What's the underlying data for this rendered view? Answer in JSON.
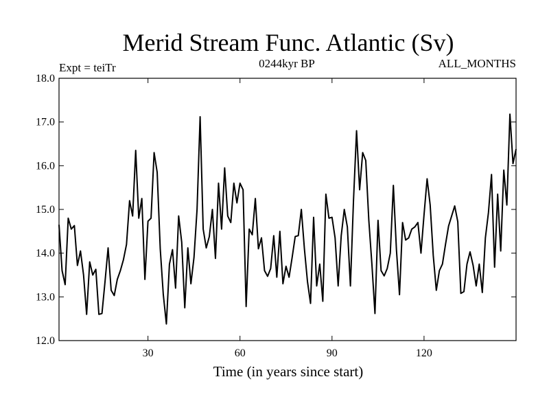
{
  "chart_data": {
    "type": "line",
    "title": "Merid Stream Func. Atlantic (Sv)",
    "subtitle_left": "Expt = teiTr",
    "subtitle_center": "0244kyr BP",
    "subtitle_right": "ALL_MONTHS",
    "xlabel": "Time (in years since start)",
    "ylabel": "",
    "xlim": [
      1,
      150
    ],
    "ylim": [
      12.0,
      18.0
    ],
    "xticks": [
      30,
      60,
      90,
      120
    ],
    "xtick_labels": [
      "30",
      "60",
      "90",
      "120"
    ],
    "yticks": [
      12.0,
      13.0,
      14.0,
      15.0,
      16.0,
      17.0,
      18.0
    ],
    "ytick_labels": [
      "12.0",
      "13.0",
      "14.0",
      "15.0",
      "16.0",
      "17.0",
      "18.0"
    ],
    "series": [
      {
        "name": "Merid Stream Func. Atlantic",
        "x": [
          1,
          2,
          3,
          4,
          5,
          6,
          7,
          8,
          9,
          10,
          11,
          12,
          13,
          14,
          15,
          16,
          17,
          18,
          19,
          20,
          21,
          22,
          23,
          24,
          25,
          26,
          27,
          28,
          29,
          30,
          31,
          32,
          33,
          34,
          35,
          36,
          37,
          38,
          39,
          40,
          41,
          42,
          43,
          44,
          45,
          46,
          47,
          48,
          49,
          50,
          51,
          52,
          53,
          54,
          55,
          56,
          57,
          58,
          59,
          60,
          61,
          62,
          63,
          64,
          65,
          66,
          67,
          68,
          69,
          70,
          71,
          72,
          73,
          74,
          75,
          76,
          77,
          78,
          79,
          80,
          81,
          82,
          83,
          84,
          85,
          86,
          87,
          88,
          89,
          90,
          91,
          92,
          93,
          94,
          95,
          96,
          97,
          98,
          99,
          100,
          101,
          102,
          103,
          104,
          105,
          106,
          107,
          108,
          109,
          110,
          111,
          112,
          113,
          114,
          115,
          116,
          117,
          118,
          119,
          120,
          121,
          122,
          123,
          124,
          125,
          126,
          127,
          128,
          129,
          130,
          131,
          132,
          133,
          134,
          135,
          136,
          137,
          138,
          139,
          140,
          141,
          142,
          143,
          144,
          145,
          146,
          147,
          148,
          149,
          150
        ],
        "values": [
          14.65,
          13.6,
          13.28,
          14.8,
          14.55,
          14.63,
          13.72,
          14.05,
          13.5,
          12.6,
          13.8,
          13.5,
          13.63,
          12.6,
          12.62,
          13.35,
          14.12,
          13.15,
          13.03,
          13.4,
          13.6,
          13.85,
          14.2,
          15.2,
          14.85,
          16.35,
          14.8,
          15.25,
          13.4,
          14.73,
          14.8,
          16.3,
          15.85,
          14.1,
          13.05,
          12.38,
          13.75,
          14.08,
          13.2,
          14.85,
          14.25,
          12.75,
          14.12,
          13.3,
          13.9,
          15.0,
          17.12,
          14.55,
          14.12,
          14.38,
          15.0,
          13.88,
          15.6,
          14.55,
          15.95,
          14.85,
          14.7,
          15.6,
          15.15,
          15.6,
          15.45,
          12.78,
          14.55,
          14.42,
          15.25,
          14.1,
          14.35,
          13.6,
          13.47,
          13.65,
          14.4,
          13.45,
          14.5,
          13.3,
          13.7,
          13.45,
          13.9,
          14.38,
          14.4,
          15.0,
          14.1,
          13.35,
          12.85,
          14.82,
          13.25,
          13.75,
          12.9,
          15.35,
          14.8,
          14.82,
          14.35,
          13.25,
          14.4,
          15.0,
          14.6,
          13.25,
          15.2,
          16.8,
          15.45,
          16.3,
          16.12,
          14.75,
          13.75,
          12.62,
          14.75,
          13.6,
          13.48,
          13.65,
          14.0,
          15.55,
          14.08,
          13.05,
          14.7,
          14.3,
          14.35,
          14.55,
          14.6,
          14.7,
          14.0,
          14.88,
          15.7,
          15.1,
          13.95,
          13.15,
          13.6,
          13.75,
          14.2,
          14.62,
          14.85,
          15.08,
          14.72,
          13.08,
          13.12,
          13.75,
          14.03,
          13.72,
          13.25,
          13.75,
          13.1,
          14.35,
          14.93,
          15.8,
          13.68,
          15.35,
          14.05,
          15.9,
          15.1,
          17.18,
          16.05,
          16.38
        ]
      }
    ]
  }
}
